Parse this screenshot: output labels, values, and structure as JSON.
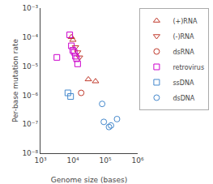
{
  "chart_data": {
    "type": "scatter",
    "xlabel": "Genome size (bases)",
    "ylabel": "Per-base mutation rate",
    "log": true,
    "grid": false,
    "legend": "upper right",
    "xlim": [
      1000,
      1000000
    ],
    "ylim": [
      1e-08,
      0.001
    ],
    "xticks": [
      {
        "value": 1000,
        "label": "10³"
      },
      {
        "value": 10000,
        "label": "10⁴"
      },
      {
        "value": 100000,
        "label": "10⁵"
      },
      {
        "value": 1000000,
        "label": "10⁶"
      }
    ],
    "yticks": [
      {
        "value": 1e-08,
        "label": "10⁻⁸"
      },
      {
        "value": 1e-07,
        "label": "10⁻⁷"
      },
      {
        "value": 1e-06,
        "label": "10⁻⁶"
      },
      {
        "value": 1e-05,
        "label": "10⁻⁵"
      },
      {
        "value": 0.0001,
        "label": "10⁻⁴"
      },
      {
        "value": 0.001,
        "label": "10⁻³"
      }
    ],
    "series": [
      {
        "name": "(+)RNA",
        "color": "#c0392b",
        "marker": "triangle-up",
        "x": [
          9000,
          10000,
          30000,
          50000
        ],
        "values": [
          0.0001,
          8e-05,
          3.5e-06,
          3e-06
        ]
      },
      {
        "name": "(-)RNA",
        "color": "#c0392b",
        "marker": "triangle-down",
        "x": [
          12000,
          14000,
          16000
        ],
        "values": [
          4.5e-05,
          3e-05,
          2e-05
        ]
      },
      {
        "name": "dsRNA",
        "color": "#c0392b",
        "marker": "circle",
        "x": [
          18000
        ],
        "values": [
          1.2e-06
        ]
      },
      {
        "name": "retrovirus",
        "color": "#cc00cc",
        "marker": "square",
        "x": [
          3200,
          8000,
          9000,
          10000,
          11000,
          12000,
          13000,
          14000
        ],
        "values": [
          2e-05,
          0.00012,
          5e-05,
          3.5e-05,
          3e-05,
          2.2e-05,
          1.8e-05,
          1.2e-05
        ]
      },
      {
        "name": "ssDNA",
        "color": "#4488cc",
        "marker": "square",
        "x": [
          7000,
          8500
        ],
        "values": [
          1.2e-06,
          9e-07
        ]
      },
      {
        "name": "dsDNA",
        "color": "#4488cc",
        "marker": "circle",
        "x": [
          80000,
          90000,
          130000,
          150000,
          230000
        ],
        "values": [
          5e-07,
          1.2e-07,
          8e-08,
          9e-08,
          1.5e-07
        ]
      }
    ]
  }
}
